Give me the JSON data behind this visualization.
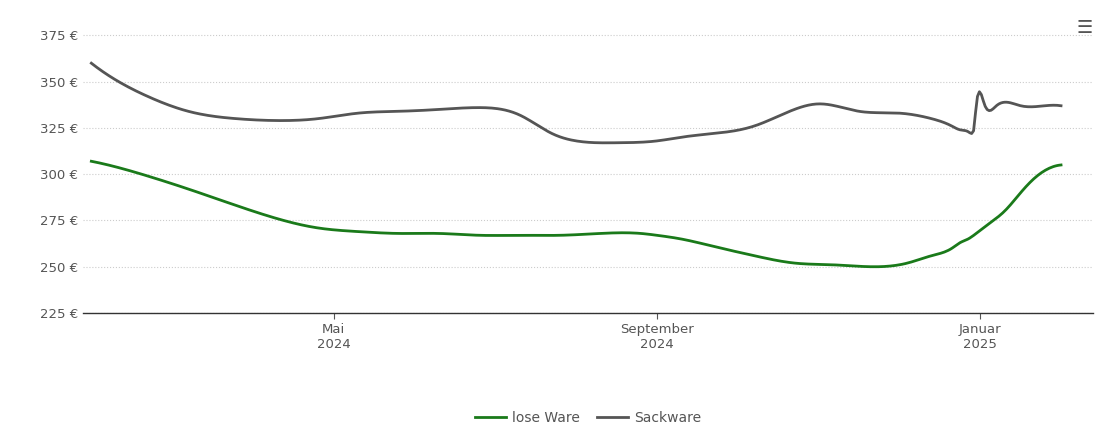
{
  "background_color": "#ffffff",
  "grid_color": "#cccccc",
  "ylim": [
    225,
    385
  ],
  "yticks": [
    225,
    250,
    275,
    300,
    325,
    350,
    375
  ],
  "ytick_labels": [
    "225 €",
    "250 €",
    "275 €",
    "300 €",
    "325 €",
    "350 €",
    "375 €"
  ],
  "xtick_labels": [
    "Mai\n2024",
    "September\n2024",
    "Januar\n2025"
  ],
  "xtick_positions": [
    3,
    7,
    11
  ],
  "lose_ware_color": "#1a7a1a",
  "sackware_color": "#555555",
  "line_width": 2.0,
  "legend_labels": [
    "lose Ware",
    "Sackware"
  ],
  "menu_icon": "≡",
  "xlim": [
    -0.1,
    12.4
  ],
  "lose_ware_x": [
    0,
    0.3,
    0.7,
    1.2,
    1.8,
    2.3,
    2.8,
    3.3,
    3.8,
    4.3,
    4.8,
    5.3,
    5.8,
    6.3,
    6.8,
    7.0,
    7.3,
    7.7,
    8.2,
    8.7,
    9.2,
    9.7,
    10.1,
    10.4,
    10.65,
    10.75,
    10.85,
    10.95,
    11.1,
    11.3,
    11.5,
    11.65,
    11.8,
    12.0
  ],
  "lose_ware_y": [
    307,
    304,
    299,
    292,
    283,
    276,
    271,
    269,
    268,
    268,
    267,
    267,
    267,
    268,
    268,
    267,
    265,
    261,
    256,
    252,
    251,
    250,
    252,
    256,
    260,
    263,
    265,
    268,
    273,
    280,
    290,
    297,
    302,
    305
  ],
  "sackware_x": [
    0,
    0.3,
    0.7,
    1.2,
    1.8,
    2.3,
    2.8,
    3.3,
    3.8,
    4.3,
    4.8,
    5.3,
    5.7,
    6.0,
    6.5,
    7.0,
    7.3,
    7.7,
    8.2,
    8.7,
    9.0,
    9.5,
    10.0,
    10.4,
    10.65,
    10.75,
    10.85,
    10.9,
    10.92,
    10.95,
    11.05,
    11.2,
    11.5,
    11.8,
    12.0
  ],
  "sackware_y": [
    360,
    351,
    342,
    334,
    330,
    329,
    330,
    333,
    334,
    335,
    336,
    332,
    322,
    318,
    317,
    318,
    320,
    322,
    326,
    335,
    338,
    334,
    333,
    330,
    326,
    324,
    323,
    322,
    324,
    337,
    338,
    337,
    337,
    337,
    337
  ]
}
